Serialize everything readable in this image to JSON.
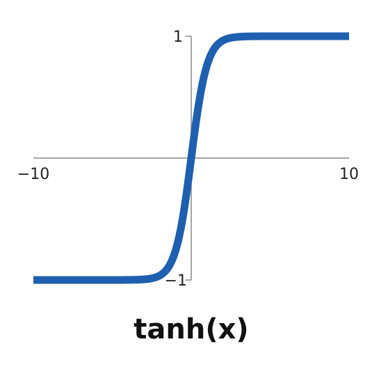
{
  "chart_data": {
    "type": "line",
    "title": "tanh(x)",
    "xlabel": "",
    "ylabel": "",
    "xlim": [
      -10,
      10
    ],
    "ylim": [
      -1,
      1
    ],
    "x_ticks": [
      "−10",
      "10"
    ],
    "y_ticks": [
      "1",
      "−1"
    ],
    "grid": false,
    "function": "tanh",
    "series": [
      {
        "color": "#1f5fb0",
        "x": [
          -10,
          -8,
          -6,
          -4,
          -3,
          -2.5,
          -2,
          -1.5,
          -1,
          -0.5,
          0,
          0.5,
          1,
          1.5,
          2,
          2.5,
          3,
          4,
          6,
          8,
          10
        ],
        "y": [
          -1.0,
          -1.0,
          -1.0,
          -0.999,
          -0.995,
          -0.987,
          -0.964,
          -0.905,
          -0.762,
          -0.462,
          0.0,
          0.462,
          0.762,
          0.905,
          0.964,
          0.987,
          0.995,
          0.999,
          1.0,
          1.0,
          1.0
        ]
      }
    ],
    "axis_color": "#888888"
  }
}
